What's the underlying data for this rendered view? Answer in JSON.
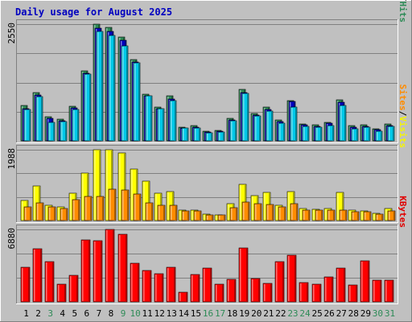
{
  "chart_data": {
    "type": "bar",
    "title": "Daily usage for August 2025",
    "categories": [
      "1",
      "2",
      "3",
      "4",
      "5",
      "6",
      "7",
      "8",
      "9",
      "10",
      "11",
      "12",
      "13",
      "14",
      "15",
      "16",
      "17",
      "18",
      "19",
      "20",
      "21",
      "22",
      "23",
      "24",
      "25",
      "26",
      "27",
      "28",
      "29",
      "30",
      "31"
    ],
    "weekend_days": [
      "3",
      "9",
      "10",
      "16",
      "17",
      "23",
      "24",
      "30",
      "31"
    ],
    "panels": [
      {
        "name": "hits_files_pages",
        "max_label": "2550",
        "ylim": [
          0,
          2550
        ],
        "side_labels": [
          "Pages",
          "/",
          "Files",
          "/",
          "Hits"
        ],
        "side_label_colors": [
          "#00c8e8",
          "#000000",
          "#0000c0",
          "#000000",
          "#2e8b57"
        ],
        "series": [
          {
            "name": "Hits",
            "color": "#2e8b57",
            "values": [
              770,
              1060,
              520,
              480,
              760,
              1530,
              2550,
              2480,
              2270,
              1780,
              1020,
              740,
              980,
              300,
              330,
              210,
              230,
              490,
              1120,
              600,
              730,
              460,
              880,
              370,
              350,
              400,
              900,
              330,
              350,
              270,
              370
            ]
          },
          {
            "name": "Files",
            "color": "#0000c0",
            "values": [
              710,
              1010,
              490,
              440,
              720,
              1480,
              2470,
              2400,
              2200,
              1720,
              980,
              700,
              920,
              280,
              300,
              190,
              210,
              450,
              1060,
              560,
              680,
              420,
              860,
              350,
              320,
              380,
              840,
              300,
              320,
              240,
              340
            ]
          },
          {
            "name": "Pages",
            "color": "#00c8e8",
            "values": [
              680,
              970,
              400,
              420,
              690,
              1460,
              2400,
              2300,
              2070,
              1700,
              980,
              700,
              880,
              280,
              290,
              180,
              190,
              440,
              1040,
              540,
              650,
              380,
              740,
              320,
              300,
              330,
              780,
              270,
              300,
              210,
              320
            ]
          }
        ]
      },
      {
        "name": "visits_sites",
        "max_label": "1988",
        "ylim": [
          0,
          1988
        ],
        "side_labels": [
          "Sites",
          "/",
          "Visits"
        ],
        "side_label_colors": [
          "#ff8c00",
          "#000000",
          "#f5f500"
        ],
        "series": [
          {
            "name": "Visits",
            "color": "#ffff00",
            "values": [
              570,
              970,
              440,
              380,
              760,
              1330,
              1988,
              1988,
              1900,
              1440,
              1100,
              760,
              820,
              290,
              290,
              180,
              160,
              470,
              1020,
              700,
              780,
              430,
              820,
              340,
              320,
              330,
              780,
              300,
              260,
              210,
              340
            ]
          },
          {
            "name": "Sites",
            "color": "#ff8c00",
            "values": [
              380,
              500,
              390,
              350,
              580,
              680,
              680,
              880,
              860,
              740,
              490,
              430,
              430,
              280,
              270,
              150,
              160,
              370,
              530,
              470,
              460,
              380,
              480,
              290,
              290,
              290,
              300,
              250,
              250,
              190,
              280
            ]
          }
        ]
      },
      {
        "name": "kbytes",
        "max_label": "6880",
        "ylim": [
          0,
          6880
        ],
        "side_labels": [
          "KBytes"
        ],
        "side_label_colors": [
          "#e00000"
        ],
        "series": [
          {
            "name": "KBytes",
            "color": "#ff0000",
            "values": [
              3260,
              5010,
              3800,
              1700,
              2560,
              5900,
              5840,
              6880,
              6390,
              3700,
              2950,
              2700,
              3250,
              900,
              2600,
              3240,
              1700,
              2150,
              5100,
              2250,
              1770,
              3800,
              4400,
              1850,
              1700,
              2400,
              3200,
              1630,
              3900,
              2070,
              2100
            ]
          }
        ]
      }
    ]
  }
}
